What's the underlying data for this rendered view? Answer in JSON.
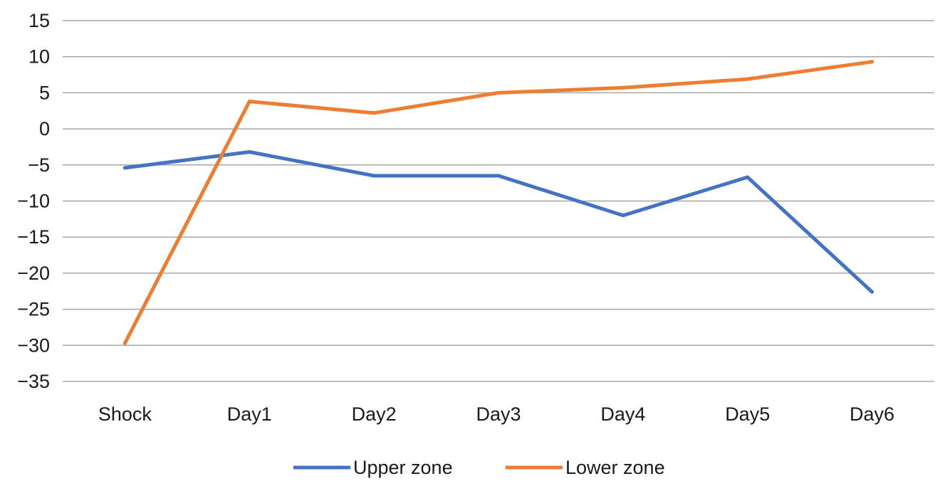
{
  "chart_data": {
    "type": "line",
    "title": "",
    "xlabel": "",
    "ylabel": "",
    "categories": [
      "Shock",
      "Day1",
      "Day2",
      "Day3",
      "Day4",
      "Day5",
      "Day6"
    ],
    "ylim": [
      -35,
      15
    ],
    "yticks": [
      15,
      10,
      5,
      0,
      -5,
      -10,
      -15,
      -20,
      -25,
      -30,
      -35
    ],
    "ytick_labels": [
      "15",
      "10",
      "5",
      "0",
      "−5",
      "−10",
      "−15",
      "−20",
      "−25",
      "−30",
      "−35"
    ],
    "grid": "horizontal",
    "legend_position": "bottom",
    "series": [
      {
        "name": "Upper zone",
        "color": "#4472c4",
        "values": [
          -5.4,
          -3.2,
          -6.5,
          -6.5,
          -12.0,
          -6.7,
          -22.6
        ]
      },
      {
        "name": "Lower zone",
        "color": "#ed7d31",
        "values": [
          -29.7,
          3.8,
          2.2,
          5.0,
          5.7,
          6.9,
          9.3
        ]
      }
    ]
  }
}
